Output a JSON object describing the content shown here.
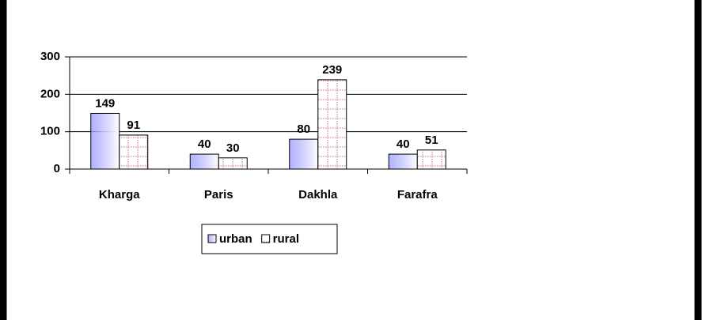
{
  "chart_data": {
    "type": "bar",
    "categories": [
      "Kharga",
      "Paris",
      "Dakhla",
      "Farafra"
    ],
    "series": [
      {
        "name": "urban",
        "color": "#9999ff",
        "values": [
          149,
          40,
          80,
          40
        ]
      },
      {
        "name": "rural",
        "color": "#cc6699",
        "values": [
          91,
          30,
          239,
          51
        ]
      }
    ],
    "ylim": [
      0,
      300
    ],
    "yticks": [
      0,
      100,
      200,
      300
    ],
    "grid": true,
    "legend": "bottom"
  }
}
